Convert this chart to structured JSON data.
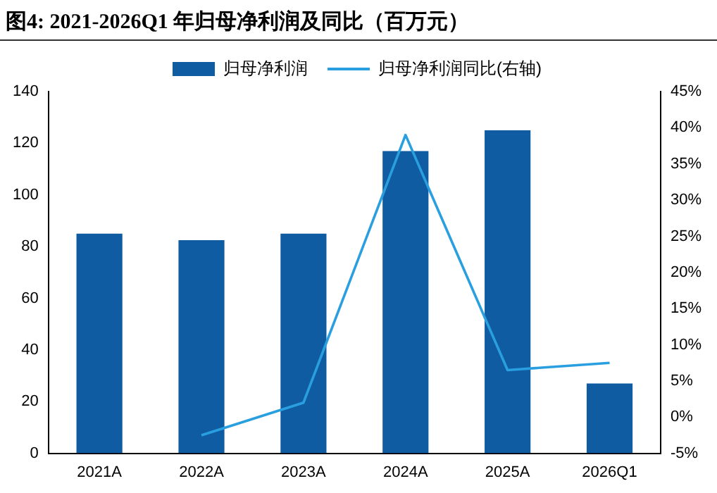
{
  "chart_data": {
    "type": "bar",
    "title": "图4:  2021-2026Q1 年归母净利润及同比（百万元）",
    "categories": [
      "2021A",
      "2022A",
      "2023A",
      "2024A",
      "2025A",
      "2026Q1"
    ],
    "series": [
      {
        "name": "归母净利润",
        "color": "#0f5ca3",
        "values": [
          85,
          82.5,
          85,
          117,
          125,
          27
        ]
      },
      {
        "name": "归母净利润同比(右轴)",
        "type": "line",
        "axis": "y2",
        "color": "#2a9fe0",
        "values": [
          null,
          -2.5,
          2,
          39,
          6.5,
          7.5
        ]
      }
    ],
    "ylim": [
      0,
      140
    ],
    "yticks": [
      0,
      20,
      40,
      60,
      80,
      100,
      120,
      140
    ],
    "y2lim": [
      -5,
      45
    ],
    "y2ticks": [
      {
        "value": -5,
        "label": "-5%"
      },
      {
        "value": 0,
        "label": "0%"
      },
      {
        "value": 5,
        "label": "5%"
      },
      {
        "value": 10,
        "label": "10%"
      },
      {
        "value": 15,
        "label": "15%"
      },
      {
        "value": 20,
        "label": "20%"
      },
      {
        "value": 25,
        "label": "25%"
      },
      {
        "value": 30,
        "label": "30%"
      },
      {
        "value": 35,
        "label": "35%"
      },
      {
        "value": 40,
        "label": "40%"
      },
      {
        "value": 45,
        "label": "45%"
      }
    ],
    "legend": "top",
    "grid": false,
    "marker": "none"
  }
}
